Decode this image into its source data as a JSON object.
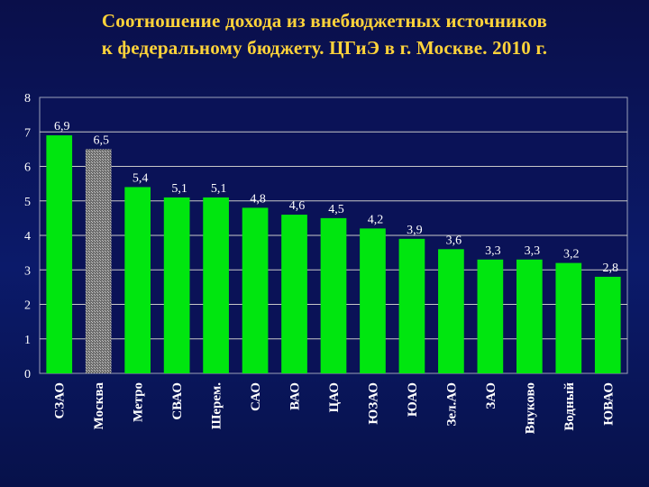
{
  "title": {
    "line1": "Соотношение дохода из внебюджетных источников",
    "line2": "к федеральному бюджету. ЦГиЭ в г. Москве. 2010 г."
  },
  "colors": {
    "title": "#ffd33a",
    "bar": "#00e60f",
    "highlight_bar": "#8a8a8a",
    "plot_bg": "#0a1257",
    "grid": "#c8c8c8",
    "text": "#ffffff"
  },
  "chart_data": {
    "type": "bar",
    "title": "Соотношение дохода из внебюджетных источников к федеральному бюджету. ЦГиЭ в г. Москве. 2010 г.",
    "categories": [
      "СЗАО",
      "Москва",
      "Метро",
      "СВАО",
      "Шерем.",
      "САО",
      "ВАО",
      "ЦАО",
      "ЮЗАО",
      "ЮАО",
      "Зел.АО",
      "ЗАО",
      "Внуково",
      "Водный",
      "ЮВАО"
    ],
    "values": [
      6.9,
      6.5,
      5.4,
      5.1,
      5.1,
      4.8,
      4.6,
      4.5,
      4.2,
      3.9,
      3.6,
      3.3,
      3.3,
      3.2,
      2.8
    ],
    "value_labels": [
      "6,9",
      "6,5",
      "5,4",
      "5,1",
      "5,1",
      "4,8",
      "4,6",
      "4,5",
      "4,2",
      "3,9",
      "3,6",
      "3,3",
      "3,3",
      "3,2",
      "2,8"
    ],
    "highlight_category": "Москва",
    "yticks": [
      0,
      1,
      2,
      3,
      4,
      5,
      6,
      7,
      8
    ],
    "ylim": [
      0,
      8
    ],
    "grid": true,
    "legend": "none",
    "xlabel": "",
    "ylabel": ""
  }
}
